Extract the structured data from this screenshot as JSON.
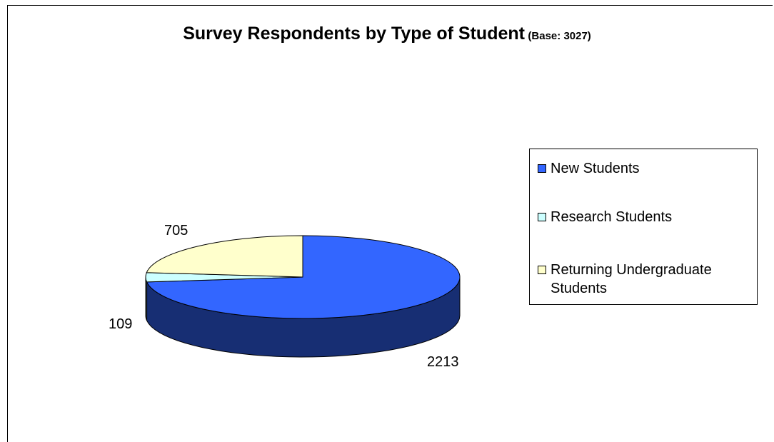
{
  "chart_data": {
    "type": "pie",
    "title": "Survey Respondents by Type of Student",
    "subtitle": "(Base: 3027)",
    "categories": [
      "New Students",
      "Research Students",
      "Returning Undergraduate Students"
    ],
    "values": [
      2213,
      109,
      705
    ],
    "colors": [
      "#3366ff",
      "#ccffff",
      "#ffffcc"
    ],
    "legend_position": "right",
    "three_d": true
  },
  "legend": {
    "items": [
      {
        "label": "New Students",
        "color": "#3366ff"
      },
      {
        "label": "Research Students",
        "color": "#ccffff"
      },
      {
        "label": "Returning Undergraduate Students",
        "color": "#ffffcc"
      }
    ]
  },
  "labels": {
    "new": "2213",
    "research": "109",
    "returning": "705"
  }
}
